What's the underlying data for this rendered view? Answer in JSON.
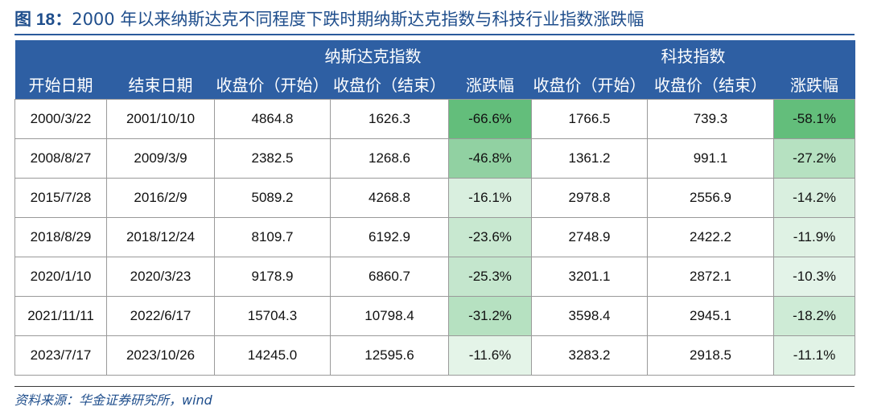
{
  "caption": {
    "prefix": "图 18：",
    "text": "2000 年以来纳斯达克不同程度下跌时期纳斯达克指数与科技行业指数涨跌幅"
  },
  "header": {
    "groups": [
      {
        "label": "纳斯达克指数"
      },
      {
        "label": "科技指数"
      }
    ],
    "columns": [
      "开始日期",
      "结束日期",
      "收盘价（开始）",
      "收盘价（结束）",
      "涨跌幅",
      "收盘价（开始）",
      "收盘价（结束）",
      "涨跌幅"
    ]
  },
  "rows": [
    {
      "start": "2000/3/22",
      "end": "2001/10/10",
      "nasdaq_open": "4864.8",
      "nasdaq_close": "1626.3",
      "nasdaq_change": "-66.6%",
      "nasdaq_change_value": -66.6,
      "tech_open": "1766.5",
      "tech_close": "739.3",
      "tech_change": "-58.1%",
      "tech_change_value": -58.1
    },
    {
      "start": "2008/8/27",
      "end": "2009/3/9",
      "nasdaq_open": "2382.5",
      "nasdaq_close": "1268.6",
      "nasdaq_change": "-46.8%",
      "nasdaq_change_value": -46.8,
      "tech_open": "1361.2",
      "tech_close": "991.1",
      "tech_change": "-27.2%",
      "tech_change_value": -27.2
    },
    {
      "start": "2015/7/28",
      "end": "2016/2/9",
      "nasdaq_open": "5089.2",
      "nasdaq_close": "4268.8",
      "nasdaq_change": "-16.1%",
      "nasdaq_change_value": -16.1,
      "tech_open": "2978.8",
      "tech_close": "2556.9",
      "tech_change": "-14.2%",
      "tech_change_value": -14.2
    },
    {
      "start": "2018/8/29",
      "end": "2018/12/24",
      "nasdaq_open": "8109.7",
      "nasdaq_close": "6192.9",
      "nasdaq_change": "-23.6%",
      "nasdaq_change_value": -23.6,
      "tech_open": "2748.9",
      "tech_close": "2422.2",
      "tech_change": "-11.9%",
      "tech_change_value": -11.9
    },
    {
      "start": "2020/1/10",
      "end": "2020/3/23",
      "nasdaq_open": "9178.9",
      "nasdaq_close": "6860.7",
      "nasdaq_change": "-25.3%",
      "nasdaq_change_value": -25.3,
      "tech_open": "3201.1",
      "tech_close": "2872.1",
      "tech_change": "-10.3%",
      "tech_change_value": -10.3
    },
    {
      "start": "2021/11/11",
      "end": "2022/6/17",
      "nasdaq_open": "15704.3",
      "nasdaq_close": "10798.4",
      "nasdaq_change": "-31.2%",
      "nasdaq_change_value": -31.2,
      "tech_open": "3598.4",
      "tech_close": "2945.1",
      "tech_change": "-18.2%",
      "tech_change_value": -18.2
    },
    {
      "start": "2023/7/17",
      "end": "2023/10/26",
      "nasdaq_open": "14245.0",
      "nasdaq_close": "12595.6",
      "nasdaq_change": "-11.6%",
      "nasdaq_change_value": -11.6,
      "tech_open": "3283.2",
      "tech_close": "2918.5",
      "tech_change": "-11.1%",
      "tech_change_value": -11.1
    }
  ],
  "colors": {
    "header_bg": "#2e5fa3",
    "header_text": "#ffffff",
    "caption_text": "#1f4e8c",
    "heat_strong": "#63be7b",
    "heat_weak": "#ffffff"
  },
  "source": "资料来源：华金证券研究所，wind"
}
